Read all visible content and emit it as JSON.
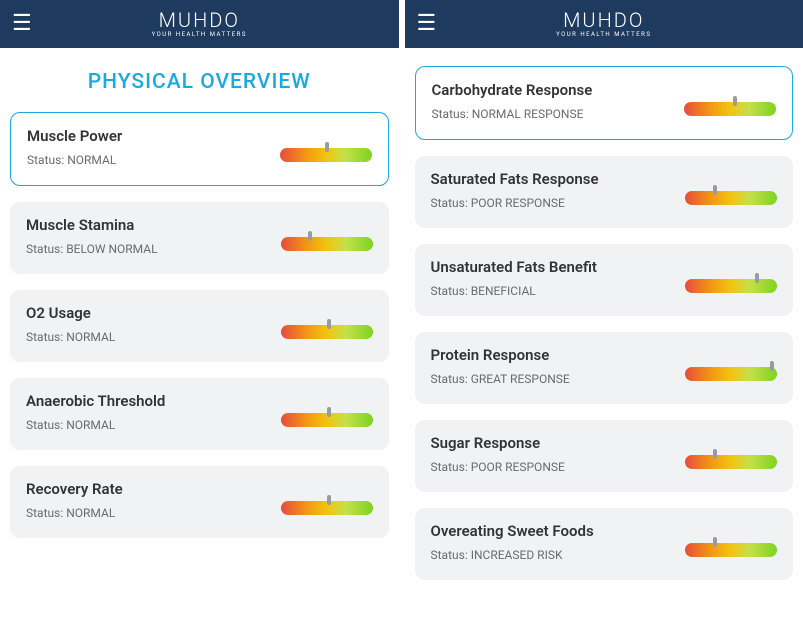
{
  "brand": {
    "name": "MUHDO",
    "tagline": "YOUR HEALTH MATTERS"
  },
  "colors": {
    "header_bg": "#1e3a5f",
    "accent": "#1ca9e0",
    "card_bg": "#f1f2f4",
    "card_selected_border": "#1ca9e0",
    "title_text": "#333333",
    "status_text": "#6b6b6b",
    "marker": "#9b9b9b",
    "gauge_gradient": [
      "#e74c3c",
      "#f39c12",
      "#f1c40f",
      "#c6e04a",
      "#7ed321"
    ]
  },
  "left_screen": {
    "page_title": "PHYSICAL OVERVIEW",
    "cards": [
      {
        "title": "Muscle Power",
        "status": "Status: NORMAL",
        "marker_pct": 52,
        "selected": true
      },
      {
        "title": "Muscle Stamina",
        "status": "Status: BELOW NORMAL",
        "marker_pct": 32,
        "selected": false
      },
      {
        "title": "O2 Usage",
        "status": "Status: NORMAL",
        "marker_pct": 53,
        "selected": false
      },
      {
        "title": "Anaerobic Threshold",
        "status": "Status: NORMAL",
        "marker_pct": 53,
        "selected": false
      },
      {
        "title": "Recovery Rate",
        "status": "Status: NORMAL",
        "marker_pct": 53,
        "selected": false
      }
    ]
  },
  "right_screen": {
    "cards": [
      {
        "title": "Carbohydrate Response",
        "status": "Status: NORMAL RESPONSE",
        "marker_pct": 55,
        "selected": true
      },
      {
        "title": "Saturated Fats Response",
        "status": "Status: POOR RESPONSE",
        "marker_pct": 33,
        "selected": false
      },
      {
        "title": "Unsaturated Fats Benefit",
        "status": "Status: BENEFICIAL",
        "marker_pct": 78,
        "selected": false
      },
      {
        "title": "Protein Response",
        "status": "Status: GREAT RESPONSE",
        "marker_pct": 95,
        "selected": false
      },
      {
        "title": "Sugar Response",
        "status": "Status: POOR RESPONSE",
        "marker_pct": 33,
        "selected": false
      },
      {
        "title": "Overeating Sweet Foods",
        "status": "Status: INCREASED RISK",
        "marker_pct": 33,
        "selected": false
      }
    ]
  }
}
